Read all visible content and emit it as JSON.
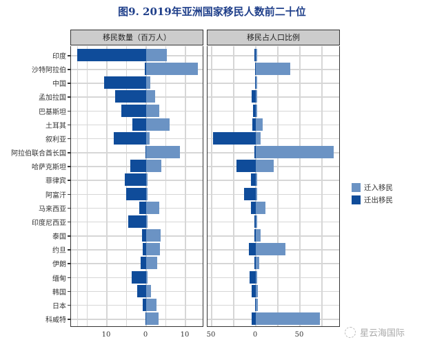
{
  "title": "图9.  2019年亚洲国家移民人数前二十位",
  "panels": {
    "left_header": "移民数量（百万人）",
    "right_header": "移民占人口比例"
  },
  "legend": {
    "items": [
      {
        "label": "迁入移民",
        "color": "#6b93c4"
      },
      {
        "label": "迁出移民",
        "color": "#0f4c9a"
      }
    ]
  },
  "watermark": "星云海国际",
  "colors": {
    "immigration": "#6b93c4",
    "emigration": "#0f4c9a",
    "header_bg": "#cccccc"
  },
  "chart_data": [
    {
      "type": "bar",
      "orientation": "horizontal",
      "title": "移民数量（百万人）",
      "xlabel": "",
      "ylabel": "",
      "xlim": [
        -18,
        14
      ],
      "x_ticks": [
        {
          "value": -10,
          "label": "10"
        },
        {
          "value": 0,
          "label": "0"
        },
        {
          "value": 10,
          "label": "10"
        }
      ],
      "grid": true,
      "legend_position": "right",
      "categories": [
        "印度",
        "沙特阿拉伯",
        "中国",
        "孟加拉国",
        "巴基斯坦",
        "土耳其",
        "叙利亚",
        "阿拉伯联合酋长国",
        "哈萨克斯坦",
        "菲律宾",
        "阿富汗",
        "马来西亚",
        "印度尼西亚",
        "泰国",
        "约旦",
        "伊朗",
        "缅甸",
        "韩国",
        "日本",
        "科威特"
      ],
      "series": [
        {
          "name": "迁入移民",
          "values": [
            5.2,
            13.1,
            1.0,
            2.2,
            3.3,
            6.0,
            0.9,
            8.6,
            3.9,
            0.2,
            0.1,
            3.4,
            0.35,
            3.6,
            3.5,
            2.8,
            0.1,
            1.2,
            2.6,
            3.1
          ]
        },
        {
          "name": "迁出移民",
          "values": [
            -17.5,
            -0.3,
            -10.7,
            -7.9,
            -6.3,
            -3.5,
            -8.2,
            -0.2,
            -4.0,
            -5.4,
            -5.1,
            -1.7,
            -4.5,
            -1.1,
            -0.9,
            -1.4,
            -3.7,
            -2.3,
            -0.9,
            -0.2
          ]
        }
      ]
    },
    {
      "type": "bar",
      "orientation": "horizontal",
      "title": "移民占人口比例",
      "xlabel": "",
      "ylabel": "",
      "xlim": [
        -54,
        95
      ],
      "x_ticks": [
        {
          "value": -50,
          "label": "50"
        },
        {
          "value": 0,
          "label": "0"
        },
        {
          "value": 50,
          "label": "50"
        }
      ],
      "grid": true,
      "categories": [
        "印度",
        "沙特阿拉伯",
        "中国",
        "孟加拉国",
        "巴基斯坦",
        "土耳其",
        "叙利亚",
        "阿拉伯联合酋长国",
        "哈萨克斯坦",
        "菲律宾",
        "阿富汗",
        "马来西亚",
        "印度尼西亚",
        "泰国",
        "约旦",
        "伊朗",
        "缅甸",
        "韩国",
        "日本",
        "科威特"
      ],
      "series": [
        {
          "name": "迁入移民",
          "values": [
            0.4,
            38.9,
            0.1,
            1.3,
            1.6,
            7.8,
            5.5,
            88.1,
            20.3,
            0.2,
            0.4,
            10.9,
            0.1,
            5.5,
            33.6,
            3.9,
            0.2,
            2.3,
            2.3,
            72.7
          ]
        },
        {
          "name": "迁出移民",
          "values": [
            -1.3,
            -1.0,
            -1.0,
            -4.5,
            -3.1,
            -3.9,
            -48.4,
            -1.6,
            -21.9,
            -5.5,
            -13.3,
            -5.5,
            -1.7,
            -1.5,
            -7.8,
            -1.6,
            -7.0,
            -4.7,
            -0.8,
            -4.7
          ]
        }
      ]
    }
  ]
}
